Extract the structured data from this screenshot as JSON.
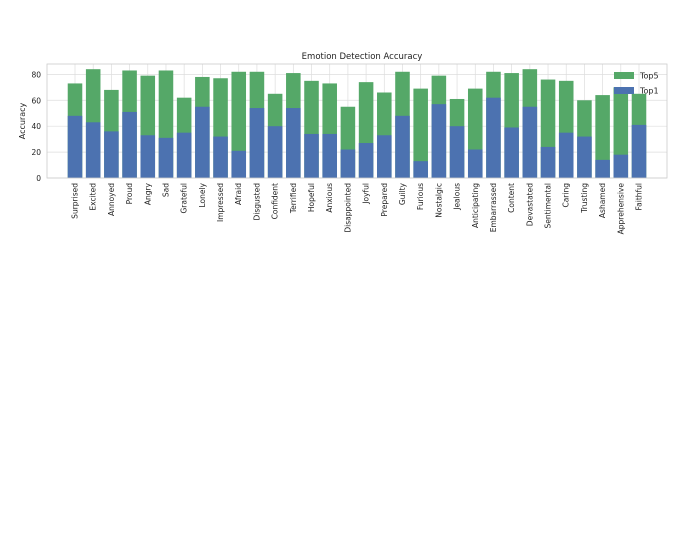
{
  "chart_data": {
    "type": "bar",
    "stacked": "overlay",
    "title": "Emotion Detection Accuracy",
    "xlabel": "",
    "ylabel": "Accuracy",
    "ylim": [
      0,
      88
    ],
    "yticks": [
      0,
      20,
      40,
      60,
      80
    ],
    "grid": true,
    "legend_position": "top-right",
    "categories": [
      "Surprised",
      "Excited",
      "Annoyed",
      "Proud",
      "Angry",
      "Sad",
      "Grateful",
      "Lonely",
      "Impressed",
      "Afraid",
      "Disgusted",
      "Confident",
      "Terrified",
      "Hopeful",
      "Anxious",
      "Disappointed",
      "Joyful",
      "Prepared",
      "Guilty",
      "Furious",
      "Nostalgic",
      "Jealous",
      "Anticipating",
      "Embarrassed",
      "Content",
      "Devastated",
      "Sentimental",
      "Caring",
      "Trusting",
      "Ashamed",
      "Apprehensive",
      "Faithful"
    ],
    "series": [
      {
        "name": "Top5",
        "color": "#55a868",
        "values": [
          73,
          84,
          68,
          83,
          79,
          83,
          62,
          78,
          77,
          82,
          82,
          65,
          81,
          75,
          73,
          55,
          74,
          66,
          82,
          69,
          79,
          61,
          69,
          82,
          81,
          84,
          76,
          75,
          60,
          64,
          70,
          65
        ]
      },
      {
        "name": "Top1",
        "color": "#4c72b0",
        "values": [
          48,
          43,
          36,
          51,
          33,
          31,
          35,
          55,
          32,
          21,
          54,
          40,
          54,
          34,
          34,
          22,
          27,
          33,
          48,
          13,
          57,
          40,
          22,
          62,
          39,
          55,
          24,
          35,
          32,
          14,
          18,
          41
        ]
      }
    ]
  }
}
